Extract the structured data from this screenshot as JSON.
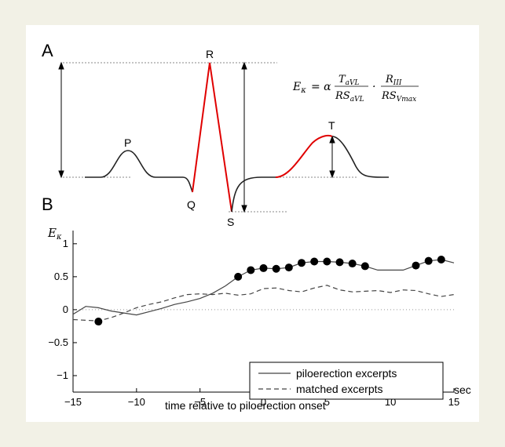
{
  "panelA": {
    "label": "A",
    "waves": [
      "P",
      "Q",
      "R",
      "S",
      "T"
    ],
    "formula": {
      "lhs": "E",
      "lhs_sub": "κ",
      "eq": "= α",
      "frac1_num": "T",
      "frac1_num_sub": "aVL",
      "frac1_den": "RS",
      "frac1_den_sub": "aVL",
      "dot": "·",
      "frac2_num": "R",
      "frac2_num_sub": "III",
      "frac2_den": "RS",
      "frac2_den_sub": "Vmax"
    },
    "colors": {
      "trace": "#222222",
      "highlight": "#e00000",
      "guide": "#888888"
    }
  },
  "panelB": {
    "label": "B",
    "ylabel": "E",
    "ylabel_sub": "κ",
    "xlabel": "time relative to piloerection onset",
    "xunit": "sec"
  },
  "chart_data": {
    "type": "line",
    "xlim": [
      -15,
      15
    ],
    "ylim": [
      -1.25,
      1.2
    ],
    "xticks": [
      -15,
      -10,
      -5,
      0,
      5,
      10,
      15
    ],
    "xtick_labels": [
      "−15",
      "−10",
      "−5",
      "0",
      "5",
      "10",
      "15"
    ],
    "yticks": [
      1,
      0.5,
      0,
      -0.5,
      -1
    ],
    "ytick_labels": [
      "1",
      "0.5",
      "0",
      "−0.5",
      "−1"
    ],
    "zero_line": "dotted",
    "legend_position": "bottom-right",
    "series": [
      {
        "name": "piloerection excerpts",
        "style": "solid",
        "x": [
          -15,
          -14,
          -13,
          -12,
          -11,
          -10,
          -9,
          -8,
          -7,
          -6,
          -5,
          -4,
          -3,
          -2,
          -1,
          0,
          1,
          2,
          3,
          4,
          5,
          6,
          7,
          8,
          9,
          10,
          11,
          12,
          13,
          14,
          15
        ],
        "y": [
          -0.07,
          0.05,
          0.03,
          -0.02,
          -0.05,
          -0.08,
          -0.03,
          0.02,
          0.08,
          0.12,
          0.17,
          0.25,
          0.36,
          0.5,
          0.6,
          0.63,
          0.62,
          0.64,
          0.71,
          0.73,
          0.73,
          0.72,
          0.7,
          0.66,
          0.6,
          0.6,
          0.6,
          0.67,
          0.74,
          0.76,
          0.71
        ],
        "significant_x": [
          -13,
          -2,
          -1,
          0,
          1,
          2,
          3,
          4,
          5,
          6,
          7,
          8,
          12,
          13,
          14
        ]
      },
      {
        "name": "matched excerpts",
        "style": "dashed",
        "x": [
          -15,
          -14,
          -13,
          -12,
          -11,
          -10,
          -9,
          -8,
          -7,
          -6,
          -5,
          -4,
          -3,
          -2,
          -1,
          0,
          1,
          2,
          3,
          4,
          5,
          6,
          7,
          8,
          9,
          10,
          11,
          12,
          13,
          14,
          15
        ],
        "y": [
          -0.15,
          -0.16,
          -0.17,
          -0.12,
          -0.05,
          0.03,
          0.08,
          0.12,
          0.18,
          0.23,
          0.24,
          0.23,
          0.25,
          0.22,
          0.24,
          0.32,
          0.33,
          0.29,
          0.27,
          0.33,
          0.37,
          0.3,
          0.27,
          0.28,
          0.29,
          0.26,
          0.3,
          0.29,
          0.24,
          0.2,
          0.23
        ]
      }
    ],
    "significant_y": [
      -0.18,
      0.5,
      0.6,
      0.63,
      0.62,
      0.64,
      0.71,
      0.73,
      0.73,
      0.72,
      0.7,
      0.66,
      0.67,
      0.74,
      0.76
    ]
  }
}
